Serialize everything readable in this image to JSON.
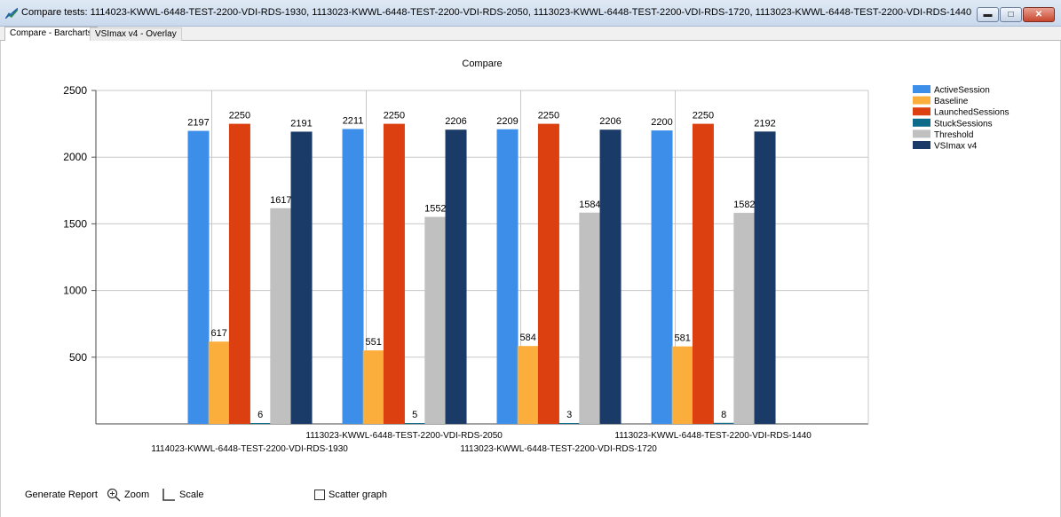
{
  "window": {
    "title": "Compare tests: 1114023-KWWL-6448-TEST-2200-VDI-RDS-1930, 1113023-KWWL-6448-TEST-2200-VDI-RDS-2050, 1113023-KWWL-6448-TEST-2200-VDI-RDS-1720, 1113023-KWWL-6448-TEST-2200-VDI-RDS-1440",
    "icon": "chart-line-icon",
    "controls": [
      "minimize-icon",
      "maximize-icon",
      "close-icon"
    ]
  },
  "tabs": [
    {
      "label": "Compare - Barcharts",
      "active": true
    },
    {
      "label": "VSImax v4 - Overlay",
      "active": false
    }
  ],
  "bottom_bar": {
    "generate_report": "Generate Report",
    "zoom": "Zoom",
    "scale": "Scale",
    "scatter": "Scatter graph",
    "scatter_checked": false
  },
  "chart_data": {
    "type": "bar",
    "title": "Compare",
    "xlabel": "",
    "ylabel": "",
    "ylim": [
      0,
      2500
    ],
    "yticks": [
      500,
      1000,
      1500,
      2000,
      2500
    ],
    "grid": true,
    "legend_position": "top-right",
    "categories": [
      "1114023-KWWL-6448-TEST-2200-VDI-RDS-1930",
      "1113023-KWWL-6448-TEST-2200-VDI-RDS-2050",
      "1113023-KWWL-6448-TEST-2200-VDI-RDS-1720",
      "1113023-KWWL-6448-TEST-2200-VDI-RDS-1440"
    ],
    "series": [
      {
        "name": "ActiveSession",
        "color": "#3c8ee8",
        "values": [
          2197,
          2211,
          2209,
          2200
        ]
      },
      {
        "name": "Baseline",
        "color": "#fbae3c",
        "values": [
          617,
          551,
          584,
          581
        ]
      },
      {
        "name": "LaunchedSessions",
        "color": "#dd4010",
        "values": [
          2250,
          2250,
          2250,
          2250
        ]
      },
      {
        "name": "StuckSessions",
        "color": "#0e6c8a",
        "values": [
          6,
          5,
          3,
          8
        ]
      },
      {
        "name": "Threshold",
        "color": "#c0c0c0",
        "values": [
          1617,
          1552,
          1584,
          1582
        ]
      },
      {
        "name": "VSImax v4",
        "color": "#1a3a68",
        "values": [
          2191,
          2206,
          2206,
          2192
        ]
      }
    ]
  }
}
